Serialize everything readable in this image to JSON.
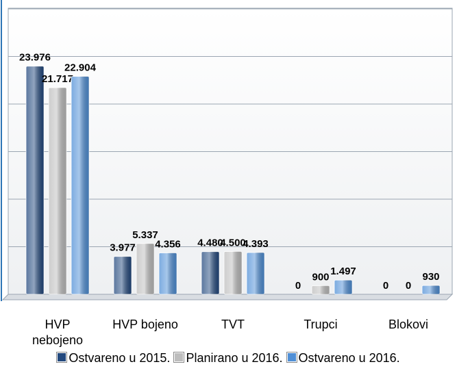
{
  "chart_data": {
    "type": "bar",
    "categories": [
      "HVP nebojeno",
      "HVP bojeno",
      "TVT",
      "Trupci",
      "Blokovi"
    ],
    "series": [
      {
        "name": "Ostvareno u 2015.",
        "color": "#23497e",
        "values": [
          23976,
          3977,
          4480,
          0,
          0
        ],
        "value_labels": [
          "23.976",
          "3.977",
          "4.480",
          "0",
          "0"
        ]
      },
      {
        "name": "Planirano u 2016.",
        "color": "#bdbdbd",
        "values": [
          21717,
          5337,
          4500,
          900,
          0
        ],
        "value_labels": [
          "21.717",
          "5.337",
          "4.500",
          "900",
          "0"
        ]
      },
      {
        "name": "Ostvareno u 2016.",
        "color": "#4f8fd6",
        "values": [
          22904,
          4356,
          4393,
          1497,
          930
        ],
        "value_labels": [
          "22.904",
          "4.356",
          "4.393",
          "1.497",
          "930"
        ]
      }
    ],
    "ylim": [
      0,
      30000
    ],
    "yticks": [
      0,
      5000,
      10000,
      15000,
      20000,
      25000,
      30000
    ],
    "grid": true,
    "legend": "bottom"
  }
}
